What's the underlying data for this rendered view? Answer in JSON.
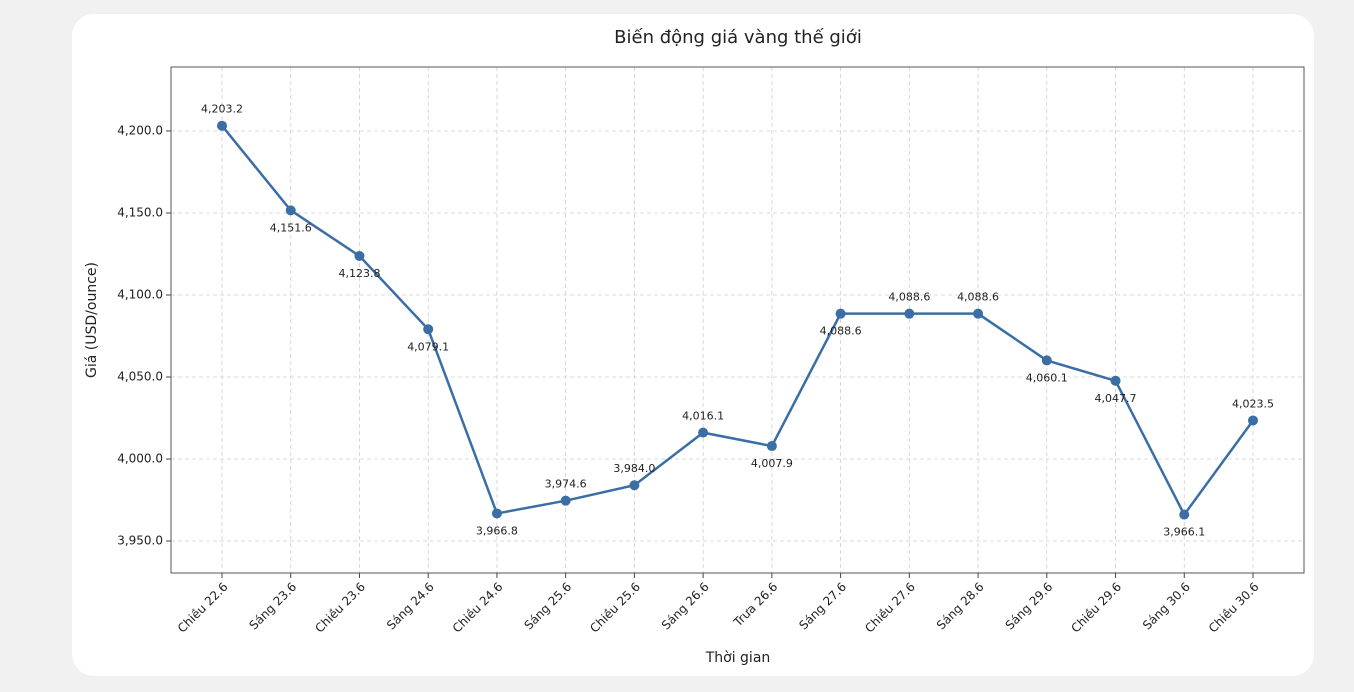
{
  "chart_data": {
    "type": "line",
    "title": "Biến động giá vàng thế giới",
    "x_label": "Thời gian",
    "y_label": "Giá (USD/ounce)",
    "categories": [
      "Chiều 22.6",
      "Sáng 23.6",
      "Chiều 23.6",
      "Sáng 24.6",
      "Chiều 24.6",
      "Sáng 25.6",
      "Chiều 25.6",
      "Sáng 26.6",
      "Trưa 26.6",
      "Sáng 27.6",
      "Chiều 27.6",
      "Sáng 28.6",
      "Sáng 29.6",
      "Chiều 29.6",
      "Sáng 30.6",
      "Chiều 30.6"
    ],
    "series": [
      {
        "name": "Giá",
        "color": "#3a6ea5",
        "values": [
          4203.2,
          4151.6,
          4123.8,
          4079.1,
          3966.8,
          3974.6,
          3984.0,
          4016.1,
          4007.9,
          4088.6,
          4088.6,
          4088.6,
          4060.1,
          4047.7,
          3966.1,
          4023.5
        ],
        "value_labels": [
          "4,203.2",
          "4,151.6",
          "4,123.8",
          "4,079.1",
          "3,966.8",
          "3,974.6",
          "3,984.0",
          "4,016.1",
          "4,007.9",
          "4,088.6",
          "4,088.6",
          "4,088.6",
          "4,060.1",
          "4,047.7",
          "3,966.1",
          "4,023.5"
        ]
      }
    ],
    "ylim": [
      3930.5,
      4239
    ],
    "yticks": [
      {
        "value": 3950,
        "label": "3,950.0"
      },
      {
        "value": 4000,
        "label": "4,000.0"
      },
      {
        "value": 4050,
        "label": "4,050.0"
      },
      {
        "value": 4100,
        "label": "4,100.0"
      },
      {
        "value": 4150,
        "label": "4,150.0"
      },
      {
        "value": 4200,
        "label": "4,200.0"
      }
    ],
    "grid": true
  }
}
